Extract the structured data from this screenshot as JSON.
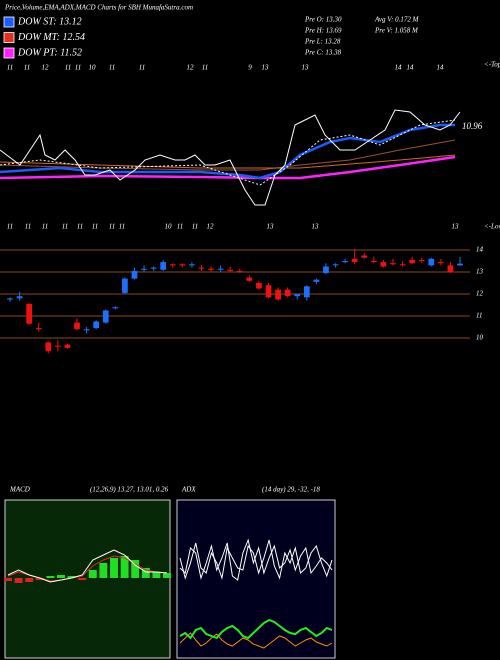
{
  "header": {
    "title": "Price,Volume,EMA,ADX,MACD Charts for SBH MunafaSutra.com",
    "legend": [
      {
        "label": "DOW ST: 13.12",
        "color": "#1e5bff"
      },
      {
        "label": "DOW MT: 12.54",
        "color": "#e0301e"
      },
      {
        "label": "DOW PT: 11.52",
        "color": "#ff22ff"
      }
    ],
    "stats": [
      "Pre  O: 13.30",
      "Pre  H: 13.69",
      "Pre  L: 13.28",
      "Pre  C: 13.38",
      "Avg V: 0.172  M",
      "Pre  V: 1.058  M"
    ]
  },
  "chart_data": [
    {
      "type": "line",
      "top_note": "<-Top",
      "bottom_note": "<-Lower",
      "annotation": "10.96",
      "xlim": [
        0,
        46
      ],
      "ylim": [
        0,
        140
      ],
      "xticks": [
        {
          "value": 1,
          "label": "11"
        },
        {
          "value": 2.7,
          "label": "11"
        },
        {
          "value": 4.5,
          "label": "12"
        },
        {
          "value": 6.8,
          "label": "11"
        },
        {
          "value": 7.8,
          "label": "11"
        },
        {
          "value": 9.2,
          "label": "10"
        },
        {
          "value": 11.2,
          "label": "11"
        },
        {
          "value": 14.2,
          "label": "11"
        },
        {
          "value": 19,
          "label": "12"
        },
        {
          "value": 20.5,
          "label": "11"
        },
        {
          "value": 25,
          "label": "9"
        },
        {
          "value": 26.5,
          "label": "13"
        },
        {
          "value": 30.5,
          "label": "13"
        },
        {
          "value": 39.8,
          "label": "14"
        },
        {
          "value": 41,
          "label": "14"
        },
        {
          "value": 44,
          "label": "14"
        }
      ],
      "x2ticks": [
        {
          "value": 1,
          "label": "11"
        },
        {
          "value": 2.8,
          "label": "11"
        },
        {
          "value": 4.5,
          "label": "11"
        },
        {
          "value": 6.5,
          "label": "11"
        },
        {
          "value": 8,
          "label": "11"
        },
        {
          "value": 9.5,
          "label": "11"
        },
        {
          "value": 11.2,
          "label": "11"
        },
        {
          "value": 12.2,
          "label": "11"
        },
        {
          "value": 16.8,
          "label": "10"
        },
        {
          "value": 18,
          "label": "11"
        },
        {
          "value": 19.5,
          "label": "11"
        },
        {
          "value": 21,
          "label": "12"
        },
        {
          "value": 27,
          "label": "13"
        },
        {
          "value": 31.5,
          "label": "13"
        },
        {
          "value": 45.5,
          "label": "13"
        }
      ],
      "series": [
        {
          "color": "#a0522d",
          "width": 1,
          "x": [
            0,
            10,
            20,
            26,
            30,
            35,
            40,
            45.5
          ],
          "values": [
            40,
            37,
            35,
            35,
            40,
            45,
            55,
            65
          ]
        },
        {
          "color": "#d2691e",
          "width": 1,
          "x": [
            0,
            10,
            20,
            30,
            40,
            45.5
          ],
          "values": [
            43,
            40,
            37,
            37,
            45,
            50
          ]
        },
        {
          "color": "#ff22ff",
          "width": 2.5,
          "x": [
            0,
            10,
            20,
            26,
            30,
            35,
            40,
            45.5
          ],
          "values": [
            27,
            29,
            28,
            27,
            27,
            33,
            40,
            48
          ]
        },
        {
          "color": "#1e5bff",
          "width": 2.5,
          "x": [
            0,
            3,
            6,
            10,
            15,
            20,
            24,
            26,
            28,
            30,
            33,
            35,
            38,
            41,
            44,
            45.5
          ],
          "values": [
            33,
            35,
            37,
            33,
            33,
            33,
            30,
            27,
            33,
            50,
            63,
            67,
            63,
            75,
            80,
            80
          ]
        },
        {
          "color": "#ffffff",
          "width": 1,
          "dash": true,
          "x": [
            0,
            4,
            10,
            20,
            26,
            29,
            32,
            35,
            38,
            42,
            45.5
          ],
          "values": [
            40,
            45,
            37,
            40,
            20,
            40,
            65,
            70,
            60,
            80,
            85
          ]
        },
        {
          "color": "#ffffff",
          "width": 1,
          "x": [
            0,
            2,
            3,
            4,
            4.5,
            5.5,
            6.5,
            7.5,
            8.5,
            9.5,
            11,
            12,
            13.5,
            14.5,
            16,
            17.5,
            18.5,
            19.5,
            20.5,
            21.5,
            23,
            24.5,
            25.5,
            26.5,
            27.5,
            28.5,
            29.5,
            30.5,
            31.5,
            32.5,
            34,
            35.5,
            37,
            38.5,
            39.5,
            41,
            42.5,
            44,
            45,
            46
          ],
          "values": [
            55,
            40,
            55,
            70,
            50,
            45,
            55,
            45,
            30,
            30,
            35,
            25,
            35,
            45,
            50,
            45,
            45,
            50,
            40,
            40,
            45,
            15,
            0,
            0,
            30,
            40,
            80,
            85,
            90,
            70,
            55,
            55,
            65,
            75,
            95,
            93,
            80,
            75,
            80,
            93
          ]
        }
      ]
    },
    {
      "type": "candlestick",
      "up_color": "#1e6fff",
      "down_color": "#ee1111",
      "grid_color": "#8b4a1a",
      "ylim": [
        9,
        15
      ],
      "yticks": [
        10,
        11,
        12,
        13,
        14
      ],
      "open": [
        11.75,
        11.8,
        11.55,
        10.45,
        9.8,
        9.65,
        9.7,
        10.7,
        10.35,
        10.45,
        10.7,
        11.35,
        12.05,
        12.7,
        13.1,
        13.15,
        13.1,
        13.35,
        13.35,
        13.3,
        13.2,
        13.15,
        13.1,
        13.1,
        13.05,
        12.75,
        12.5,
        12.4,
        12.2,
        12.2,
        11.9,
        11.85,
        12.55,
        12.95,
        13.3,
        13.45,
        13.6,
        13.75,
        13.5,
        13.45,
        13.4,
        13.35,
        13.55,
        13.55,
        13.3,
        13.45,
        13.3,
        13.3
      ],
      "high": [
        11.85,
        12.1,
        11.6,
        10.7,
        9.85,
        9.9,
        9.75,
        10.9,
        10.5,
        10.8,
        11.3,
        11.45,
        12.75,
        13.2,
        13.3,
        13.25,
        13.55,
        13.4,
        13.4,
        13.45,
        13.3,
        13.25,
        13.3,
        13.25,
        13.15,
        12.85,
        12.6,
        12.5,
        12.3,
        12.3,
        12.0,
        12.4,
        12.7,
        13.4,
        13.4,
        13.6,
        14.05,
        13.85,
        13.7,
        13.55,
        13.6,
        13.5,
        13.7,
        13.65,
        13.65,
        13.6,
        13.45,
        13.69
      ],
      "low": [
        11.65,
        11.7,
        10.6,
        10.3,
        9.3,
        9.4,
        9.5,
        10.35,
        10.2,
        10.4,
        10.65,
        11.3,
        12.0,
        12.65,
        13.0,
        13.05,
        13.05,
        13.2,
        13.2,
        13.2,
        13.05,
        13.0,
        13.0,
        13.0,
        12.95,
        12.55,
        12.2,
        11.8,
        11.7,
        11.85,
        11.75,
        11.7,
        12.45,
        12.9,
        13.2,
        13.4,
        13.35,
        13.6,
        13.4,
        13.2,
        13.3,
        13.25,
        13.35,
        13.4,
        13.25,
        13.3,
        12.95,
        13.28
      ],
      "close": [
        11.8,
        11.9,
        10.65,
        10.4,
        9.4,
        9.6,
        9.55,
        10.4,
        10.4,
        10.75,
        11.25,
        11.4,
        12.7,
        13.05,
        13.15,
        13.2,
        13.45,
        13.3,
        13.3,
        13.35,
        13.15,
        13.1,
        13.15,
        13.05,
        13.0,
        12.6,
        12.25,
        11.85,
        11.75,
        11.9,
        12.0,
        12.35,
        12.65,
        13.25,
        13.35,
        13.5,
        13.45,
        13.65,
        13.45,
        13.25,
        13.35,
        13.3,
        13.4,
        13.5,
        13.6,
        13.4,
        13.0,
        13.38
      ]
    },
    {
      "type": "macd",
      "title": "MACD",
      "subtitle": "(12,26,9) 13.27, 13.01, 0.26",
      "background": "#062806",
      "xlim": [
        0,
        15
      ],
      "ylim": [
        -80,
        78
      ],
      "histogram": {
        "up_color": "#22dd22",
        "down_color": "#dd2222",
        "x": [
          0,
          1,
          2,
          3,
          4,
          5,
          6,
          7,
          8,
          9,
          10,
          11,
          12,
          13,
          14,
          15
        ],
        "values": [
          -3,
          -5,
          -4,
          -2,
          2,
          3,
          2,
          -2,
          8,
          15,
          20,
          22,
          18,
          10,
          6,
          5
        ]
      },
      "series": [
        {
          "color": "#ee2222",
          "width": 1,
          "x": [
            0,
            1,
            2,
            3,
            4,
            5,
            6,
            7,
            8,
            9,
            10,
            11,
            12,
            13,
            14,
            15
          ],
          "values": [
            2,
            6,
            3,
            0,
            -3,
            -2,
            0,
            2,
            12,
            18,
            22,
            20,
            14,
            8,
            6,
            5
          ]
        },
        {
          "color": "#ffffff",
          "width": 1,
          "x": [
            0,
            1,
            2,
            3,
            4,
            5,
            6,
            7,
            8,
            9,
            10,
            11,
            12,
            13,
            14,
            15
          ],
          "values": [
            3,
            8,
            3,
            0,
            -4,
            -2,
            0,
            3,
            18,
            23,
            28,
            23,
            13,
            6,
            6,
            5
          ]
        }
      ]
    },
    {
      "type": "line",
      "title": "ADX",
      "subtitle": "(14 day) 29, -32, -18",
      "background": "#00001e",
      "xlim": [
        0,
        29
      ],
      "ylim": [
        0,
        158
      ],
      "series": [
        {
          "color": "#ffffff",
          "width": 1,
          "x": [
            0,
            1,
            2,
            3,
            4,
            5,
            6,
            7,
            8,
            9,
            10,
            11,
            12,
            13,
            14,
            15,
            16,
            17,
            18,
            19,
            20,
            21,
            22,
            23,
            24,
            25,
            26,
            27,
            28,
            29
          ],
          "values": [
            90,
            85,
            110,
            105,
            80,
            95,
            112,
            88,
            100,
            115,
            82,
            78,
            105,
            118,
            95,
            110,
            85,
            100,
            112,
            90,
            95,
            108,
            88,
            102,
            110,
            85,
            92,
            100,
            95,
            88
          ]
        },
        {
          "color": "#ffffff",
          "width": 1,
          "x": [
            0,
            1,
            2,
            3,
            4,
            5,
            6,
            7,
            8,
            9,
            10,
            11,
            12,
            13,
            14,
            15,
            16,
            17,
            18,
            19,
            20,
            21,
            22,
            23,
            24,
            25,
            26,
            27,
            28,
            29
          ],
          "values": [
            100,
            80,
            95,
            115,
            90,
            85,
            105,
            95,
            80,
            110,
            100,
            90,
            88,
            112,
            105,
            85,
            100,
            118,
            92,
            80,
            105,
            95,
            110,
            85,
            90,
            105,
            112,
            95,
            82,
            98
          ]
        },
        {
          "color": "#ff8c00",
          "width": 1,
          "x": [
            0,
            1,
            2,
            3,
            4,
            5,
            6,
            7,
            8,
            9,
            10,
            11,
            12,
            13,
            14,
            15,
            16,
            17,
            18,
            19,
            20,
            21,
            22,
            23,
            24,
            25,
            26,
            27,
            28,
            29
          ],
          "values": [
            15,
            20,
            25,
            18,
            12,
            15,
            20,
            24,
            18,
            14,
            12,
            16,
            20,
            18,
            14,
            12,
            10,
            14,
            18,
            22,
            20,
            16,
            12,
            15,
            18,
            20,
            16,
            14,
            12,
            15
          ]
        },
        {
          "color": "#22ee22",
          "width": 2,
          "x": [
            0,
            1,
            2,
            3,
            4,
            5,
            6,
            7,
            8,
            9,
            10,
            11,
            12,
            13,
            14,
            15,
            16,
            17,
            18,
            19,
            20,
            21,
            22,
            23,
            24,
            25,
            26,
            27,
            28,
            29
          ],
          "values": [
            22,
            25,
            20,
            28,
            30,
            24,
            22,
            20,
            26,
            30,
            32,
            28,
            22,
            20,
            25,
            30,
            35,
            38,
            36,
            32,
            28,
            25,
            24,
            28,
            30,
            26,
            22,
            25,
            30,
            28
          ]
        }
      ]
    }
  ]
}
